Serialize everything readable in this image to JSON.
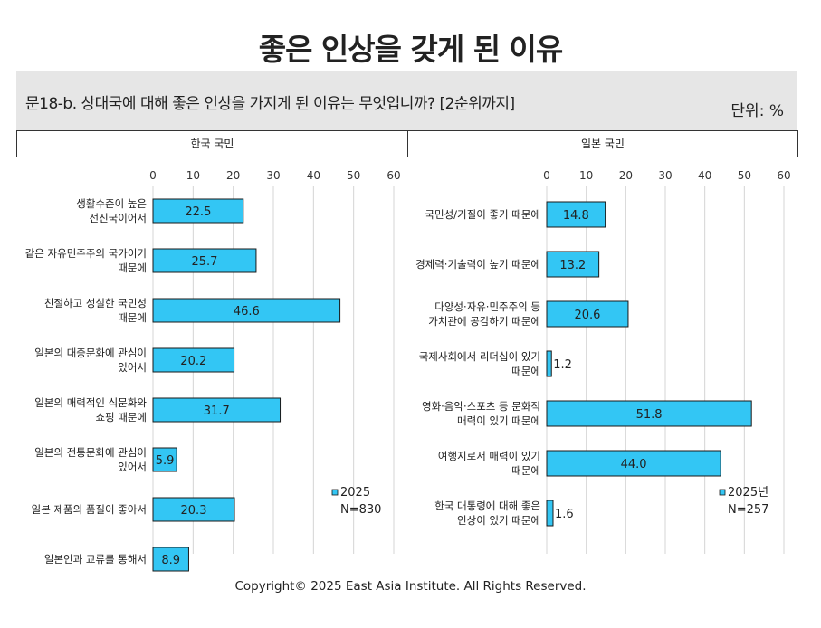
{
  "title": "좋은 인상을 갖게 된 이유",
  "question": "문18-b. 상대국에 대해 좋은 인상을 가지게 된 이유는 무엇입니까? [2순위까지]",
  "unit": "단위: %",
  "copyright": "Copyright© 2025 East Asia Institute. All Rights Reserved.",
  "colors": {
    "bar": "#33c6f4",
    "bar_border": "#1a1a1a",
    "grid": "#d4d4d4",
    "header_bg": "#e6e6e6"
  },
  "chart_data": [
    {
      "type": "bar",
      "orientation": "horizontal",
      "panel": "한국 국민",
      "xlim": [
        0,
        60
      ],
      "ticks": [
        0,
        10,
        20,
        30,
        40,
        50,
        60
      ],
      "categories": [
        [
          "생활수준이 높은",
          "선진국이어서"
        ],
        [
          "같은 자유민주주의 국가이기",
          "때문에"
        ],
        [
          "친절하고 성실한 국민성",
          "때문에"
        ],
        [
          "일본의 대중문화에 관심이",
          "있어서"
        ],
        [
          "일본의 매력적인 식문화와",
          "쇼핑 때문에"
        ],
        [
          "일본의 전통문화에 관심이",
          "있어서"
        ],
        [
          "일본 제품의 품질이 좋아서"
        ],
        [
          "일본인과 교류를 통해서"
        ]
      ],
      "values": [
        22.5,
        25.7,
        46.6,
        20.2,
        31.7,
        5.9,
        20.3,
        8.9
      ],
      "legend": {
        "label": "2025",
        "n": "N=830"
      }
    },
    {
      "type": "bar",
      "orientation": "horizontal",
      "panel": "일본 국민",
      "xlim": [
        0,
        60
      ],
      "ticks": [
        0,
        10,
        20,
        30,
        40,
        50,
        60
      ],
      "categories": [
        [
          "국민성/기질이 좋기 때문에"
        ],
        [
          "경제력·기술력이 높기 때문에"
        ],
        [
          "다양성·자유·민주주의 등",
          "가치관에 공감하기 때문에"
        ],
        [
          "국제사회에서 리더십이 있기",
          "때문에"
        ],
        [
          "영화·음악·스포츠 등 문화적",
          "매력이 있기 때문에"
        ],
        [
          "여행지로서 매력이 있기",
          "때문에"
        ],
        [
          "한국 대통령에 대해 좋은",
          "인상이 있기 때문에"
        ]
      ],
      "values": [
        14.8,
        13.2,
        20.6,
        1.2,
        51.8,
        44.0,
        1.6
      ],
      "legend": {
        "label": "2025년",
        "n": "N=257"
      }
    }
  ]
}
